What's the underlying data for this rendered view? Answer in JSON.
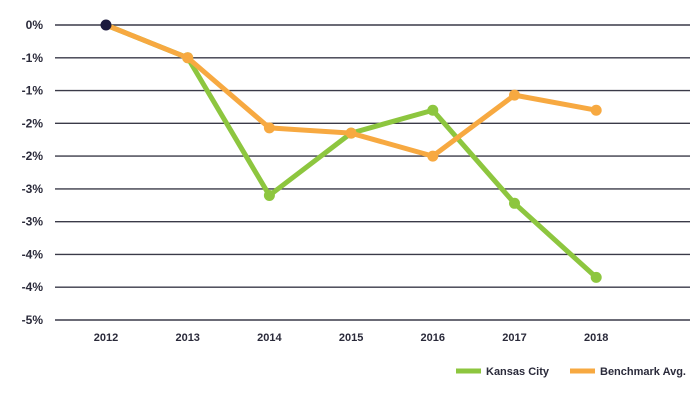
{
  "chart_data": {
    "type": "line",
    "title": "",
    "xlabel": "",
    "ylabel": "",
    "categories": [
      "2012",
      "2013",
      "2014",
      "2015",
      "2016",
      "2017",
      "2018"
    ],
    "y_tick_labels": [
      "0%",
      "-1%",
      "-1%",
      "-2%",
      "-2%",
      "-3%",
      "-3%",
      "-4%",
      "-4%",
      "-5%"
    ],
    "y_tick_values": [
      0,
      -0.5,
      -1.0,
      -1.5,
      -2.0,
      -2.5,
      -3.0,
      -3.5,
      -4.0,
      -4.5
    ],
    "ylim": [
      -4.5,
      0
    ],
    "grid": true,
    "legend_position": "bottom-right",
    "series": [
      {
        "name": "Kansas City",
        "color": "#8dc63f",
        "values": [
          0,
          -0.5,
          -2.6,
          -1.65,
          -1.3,
          -2.72,
          -3.85
        ]
      },
      {
        "name": "Benchmark Avg.",
        "color": "#f7a941",
        "values": [
          0,
          -0.5,
          -1.57,
          -1.65,
          -2.0,
          -1.07,
          -1.3
        ]
      }
    ],
    "start_point_color": "#1c1a3e"
  }
}
